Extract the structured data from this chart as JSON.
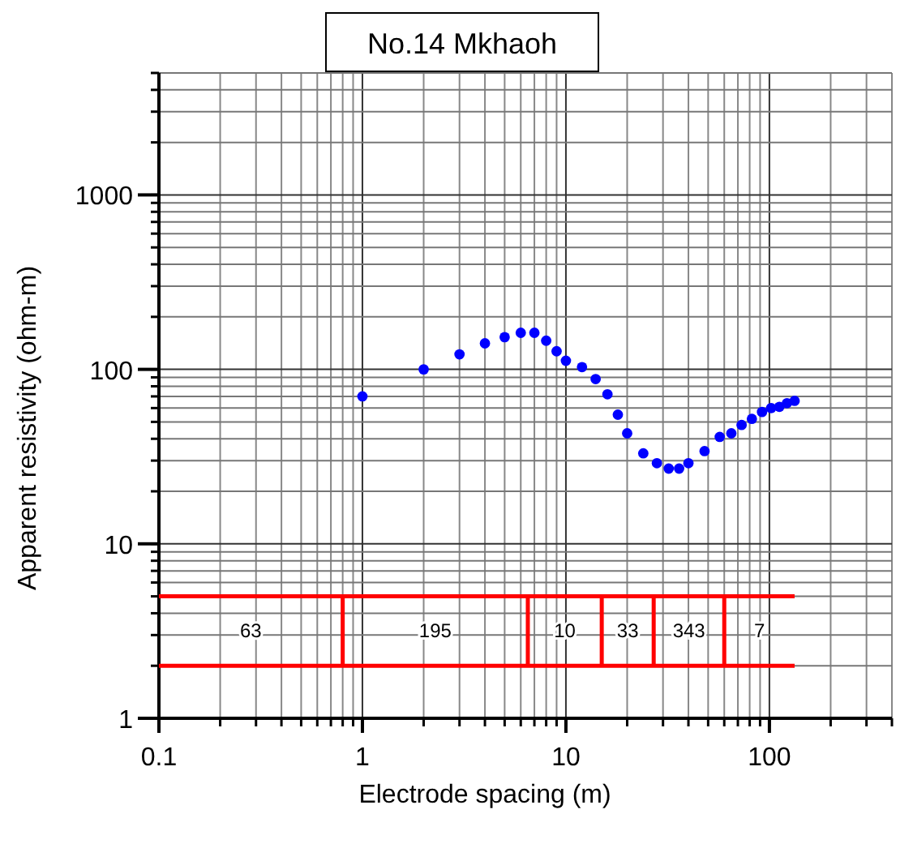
{
  "chart_data": {
    "type": "scatter",
    "title": "No.14 Mkhaoh",
    "xlabel": "Electrode spacing (m)",
    "ylabel": "Apparent resistivity (ohm-m)",
    "log": "xy",
    "grid": true,
    "xlim": [
      0.1,
      400
    ],
    "xticks": [
      0.1,
      1,
      10,
      100
    ],
    "ylim": [
      1,
      5000
    ],
    "yticks": [
      1,
      10,
      100,
      1000
    ],
    "series": [
      {
        "marker": "circle",
        "color": "#0000ff",
        "x": [
          1,
          2,
          3,
          4,
          5,
          6,
          7,
          8,
          9,
          10,
          12,
          14,
          16,
          18,
          20,
          24,
          28,
          32,
          36,
          40,
          48,
          57,
          65,
          73,
          82,
          92,
          102,
          112,
          122,
          133
        ],
        "values": [
          70,
          100,
          122,
          141,
          153,
          162,
          162,
          146,
          127,
          112,
          103,
          88,
          72,
          55,
          43,
          33,
          29,
          27,
          27,
          29,
          34,
          41,
          43,
          48,
          52,
          57,
          60,
          61,
          64,
          66
        ]
      },
      {
        "type": "line",
        "color": "#ff0000",
        "x": [
          0.1,
          133
        ],
        "values": [
          5,
          5
        ]
      },
      {
        "type": "line",
        "color": "#ff0000",
        "x": [
          0.1,
          133
        ],
        "values": [
          2,
          2
        ]
      },
      {
        "type": "line",
        "color": "#ff0000",
        "x": [
          0.8,
          0.8
        ],
        "values": [
          2,
          5
        ]
      },
      {
        "type": "line",
        "color": "#ff0000",
        "x": [
          6.5,
          6.5
        ],
        "values": [
          2,
          5
        ]
      },
      {
        "type": "line",
        "color": "#ff0000",
        "x": [
          15,
          15
        ],
        "values": [
          2,
          5
        ]
      },
      {
        "type": "line",
        "color": "#ff0000",
        "x": [
          27,
          27
        ],
        "values": [
          2,
          5
        ]
      },
      {
        "type": "line",
        "color": "#ff0000",
        "x": [
          60,
          60
        ],
        "values": [
          2,
          5
        ]
      }
    ],
    "annotations": [
      "63",
      "195",
      "10",
      "33",
      "343",
      "7"
    ]
  }
}
